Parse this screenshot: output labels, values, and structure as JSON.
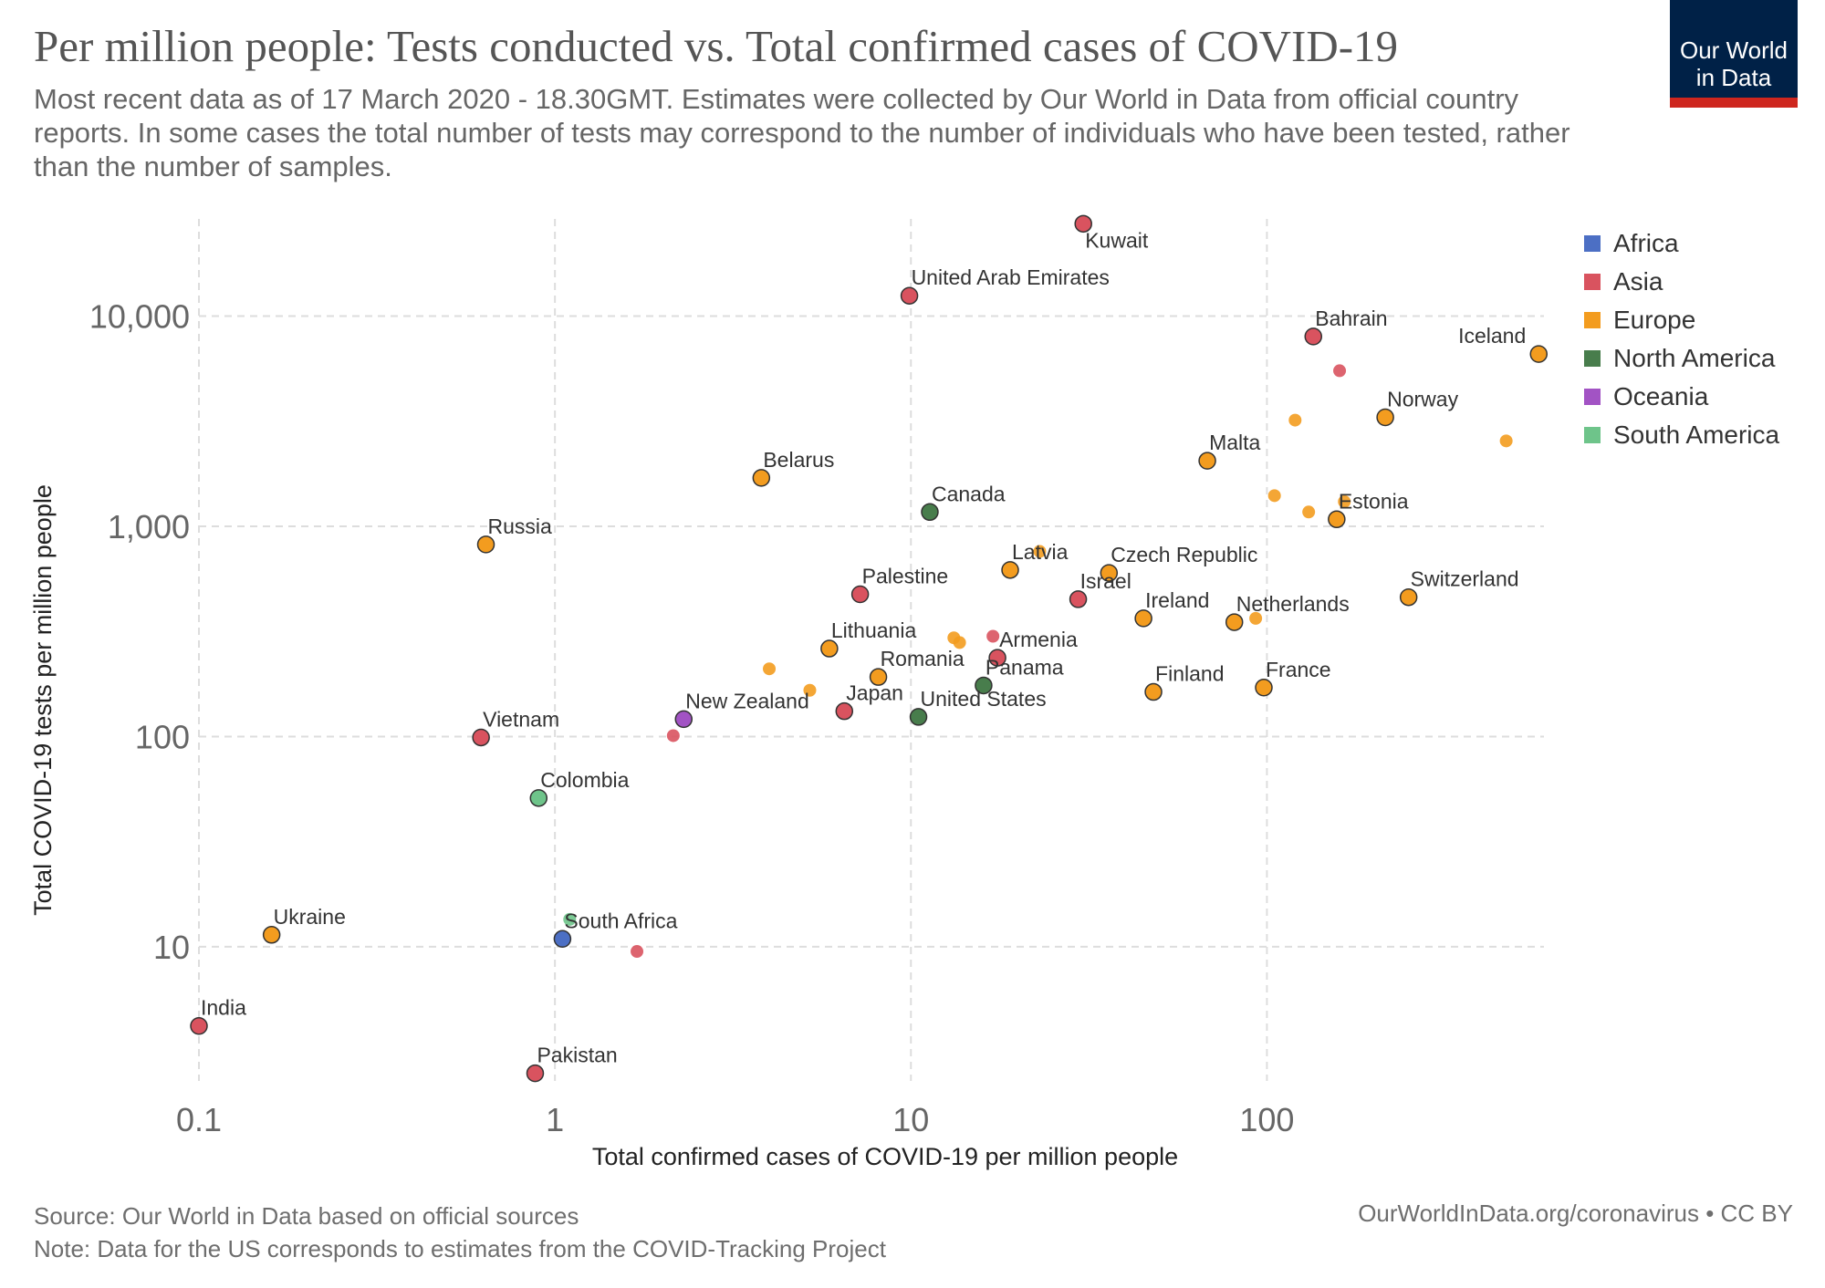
{
  "header": {
    "title": "Per million people: Tests conducted vs. Total confirmed cases of COVID-19",
    "subtitle": "Most recent data as of 17 March 2020 - 18.30GMT. Estimates were collected by Our World in Data from official country reports. In some cases the total number of tests may correspond to the number of individuals who have been tested, rather than the number of samples.",
    "logo_line1": "Our World",
    "logo_line2": "in Data"
  },
  "footer": {
    "source": "Source: Our World in Data based on official sources",
    "note": "Note: Data for the US corresponds to estimates from the COVID-Tracking Project",
    "credit": "OurWorldInData.org/coronavirus • CC BY"
  },
  "colors": {
    "Africa": "#4c6fc4",
    "Asia": "#d9535f",
    "Europe": "#f39c1f",
    "North America": "#487d4c",
    "Oceania": "#a253c4",
    "South America": "#6ec48a"
  },
  "chart_data": {
    "type": "scatter",
    "title": "Per million people: Tests conducted vs. Total confirmed cases of COVID-19",
    "xlabel": "Total confirmed cases of COVID-19 per million people",
    "ylabel": "Total COVID-19 tests per million people",
    "xscale": "log",
    "yscale": "log",
    "xlim": [
      0.1,
      600
    ],
    "ylim": [
      2.3,
      29000
    ],
    "xticks": [
      0.1,
      1,
      10,
      100
    ],
    "xtick_labels": [
      "0.1",
      "1",
      "10",
      "100"
    ],
    "yticks": [
      10,
      100,
      1000,
      10000
    ],
    "ytick_labels": [
      "10",
      "100",
      "1,000",
      "10,000"
    ],
    "legend": [
      "Africa",
      "Asia",
      "Europe",
      "North America",
      "Oceania",
      "South America"
    ],
    "legend_position": "top-right",
    "points": [
      {
        "label": "Kuwait",
        "region": "Asia",
        "x": 30.5,
        "y": 27500,
        "labeled": true
      },
      {
        "label": "United Arab Emirates",
        "region": "Asia",
        "x": 9.9,
        "y": 12500,
        "labeled": true
      },
      {
        "label": "Bahrain",
        "region": "Asia",
        "x": 135,
        "y": 8000,
        "labeled": true
      },
      {
        "label": "Iceland",
        "region": "Europe",
        "x": 580,
        "y": 6600,
        "labeled": true
      },
      {
        "label": "Norway",
        "region": "Europe",
        "x": 215,
        "y": 3300,
        "labeled": true
      },
      {
        "label": "Malta",
        "region": "Europe",
        "x": 68,
        "y": 2050,
        "labeled": true
      },
      {
        "label": "Belarus",
        "region": "Europe",
        "x": 3.8,
        "y": 1700,
        "labeled": true
      },
      {
        "label": "Canada",
        "region": "North America",
        "x": 11.3,
        "y": 1170,
        "labeled": true
      },
      {
        "label": "Estonia",
        "region": "Europe",
        "x": 157,
        "y": 1080,
        "labeled": true
      },
      {
        "label": "Russia",
        "region": "Europe",
        "x": 0.64,
        "y": 820,
        "labeled": true
      },
      {
        "label": "Latvia",
        "region": "Europe",
        "x": 19,
        "y": 620,
        "labeled": true
      },
      {
        "label": "Czech Republic",
        "region": "Europe",
        "x": 36,
        "y": 600,
        "labeled": true
      },
      {
        "label": "Palestine",
        "region": "Asia",
        "x": 7.2,
        "y": 475,
        "labeled": true
      },
      {
        "label": "Israel",
        "region": "Asia",
        "x": 29.5,
        "y": 450,
        "labeled": true
      },
      {
        "label": "Switzerland",
        "region": "Europe",
        "x": 250,
        "y": 460,
        "labeled": true
      },
      {
        "label": "Ireland",
        "region": "Europe",
        "x": 45,
        "y": 365,
        "labeled": true
      },
      {
        "label": "Netherlands",
        "region": "Europe",
        "x": 81,
        "y": 350,
        "labeled": true
      },
      {
        "label": "Lithuania",
        "region": "Europe",
        "x": 5.9,
        "y": 262,
        "labeled": true
      },
      {
        "label": "Armenia",
        "region": "Asia",
        "x": 17.5,
        "y": 237,
        "labeled": true
      },
      {
        "label": "Romania",
        "region": "Europe",
        "x": 8.1,
        "y": 192,
        "labeled": true
      },
      {
        "label": "Panama",
        "region": "North America",
        "x": 16,
        "y": 175,
        "labeled": true
      },
      {
        "label": "Finland",
        "region": "Europe",
        "x": 48,
        "y": 163,
        "labeled": true
      },
      {
        "label": "France",
        "region": "Europe",
        "x": 98,
        "y": 171,
        "labeled": true
      },
      {
        "label": "Japan",
        "region": "Asia",
        "x": 6.5,
        "y": 132,
        "labeled": true
      },
      {
        "label": "United States",
        "region": "North America",
        "x": 10.5,
        "y": 124,
        "labeled": true
      },
      {
        "label": "New Zealand",
        "region": "Oceania",
        "x": 2.3,
        "y": 121,
        "labeled": true
      },
      {
        "label": "Vietnam",
        "region": "Asia",
        "x": 0.62,
        "y": 99,
        "labeled": true
      },
      {
        "label": "Colombia",
        "region": "South America",
        "x": 0.9,
        "y": 51,
        "labeled": true
      },
      {
        "label": "Ukraine",
        "region": "Europe",
        "x": 0.16,
        "y": 11.4,
        "labeled": true
      },
      {
        "label": "South Africa",
        "region": "Africa",
        "x": 1.05,
        "y": 10.9,
        "labeled": true
      },
      {
        "label": "India",
        "region": "Asia",
        "x": 0.1,
        "y": 4.2,
        "labeled": true
      },
      {
        "label": "Pakistan",
        "region": "Asia",
        "x": 0.88,
        "y": 2.5,
        "labeled": true
      },
      {
        "label": "",
        "region": "Asia",
        "x": 160,
        "y": 5500,
        "labeled": false
      },
      {
        "label": "",
        "region": "Europe",
        "x": 120,
        "y": 3200,
        "labeled": false
      },
      {
        "label": "",
        "region": "Europe",
        "x": 470,
        "y": 2550,
        "labeled": false
      },
      {
        "label": "",
        "region": "Europe",
        "x": 105,
        "y": 1400,
        "labeled": false
      },
      {
        "label": "",
        "region": "Europe",
        "x": 131,
        "y": 1170,
        "labeled": false
      },
      {
        "label": "",
        "region": "Europe",
        "x": 165,
        "y": 1310,
        "labeled": false
      },
      {
        "label": "",
        "region": "Europe",
        "x": 23,
        "y": 760,
        "labeled": false
      },
      {
        "label": "",
        "region": "Europe",
        "x": 93,
        "y": 365,
        "labeled": false
      },
      {
        "label": "",
        "region": "Asia",
        "x": 17,
        "y": 300,
        "labeled": false
      },
      {
        "label": "",
        "region": "Europe",
        "x": 13.2,
        "y": 295,
        "labeled": false
      },
      {
        "label": "",
        "region": "Europe",
        "x": 13.7,
        "y": 280,
        "labeled": false
      },
      {
        "label": "",
        "region": "Europe",
        "x": 4,
        "y": 210,
        "labeled": false
      },
      {
        "label": "",
        "region": "Europe",
        "x": 5.2,
        "y": 166,
        "labeled": false
      },
      {
        "label": "",
        "region": "Asia",
        "x": 2.15,
        "y": 101,
        "labeled": false
      },
      {
        "label": "",
        "region": "South America",
        "x": 1.1,
        "y": 13.5,
        "labeled": false
      },
      {
        "label": "",
        "region": "Asia",
        "x": 1.7,
        "y": 9.5,
        "labeled": false
      }
    ]
  }
}
